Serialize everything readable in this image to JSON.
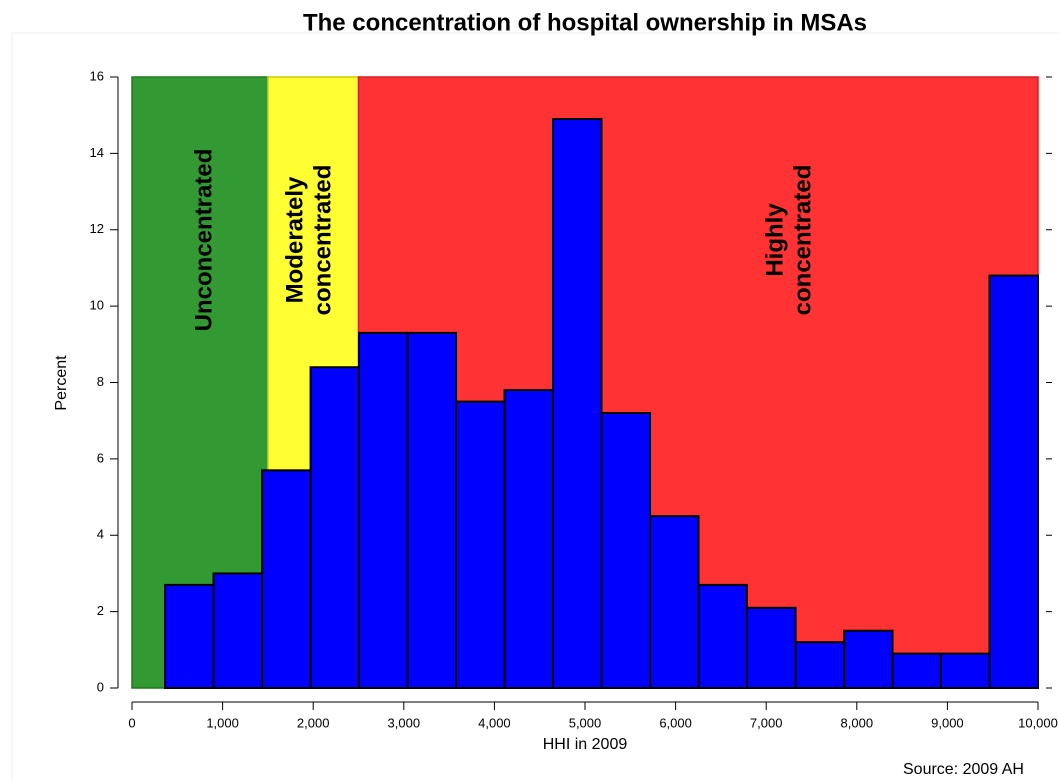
{
  "chart_data": {
    "type": "histogram",
    "title": "The concentration of hospital ownership in MSAs",
    "x_label": "HHI in 2009",
    "y_label": "Percent",
    "source": "Source: 2009 AH",
    "bins": [
      365,
      900,
      1435,
      1971,
      2506,
      3041,
      3576,
      4112,
      4647,
      5182,
      5718,
      6253,
      6788,
      7324,
      7859,
      8394,
      8929,
      9465,
      10000
    ],
    "values": [
      2.7,
      3.0,
      5.7,
      8.4,
      9.3,
      9.3,
      7.5,
      7.8,
      14.9,
      7.2,
      4.5,
      2.7,
      2.1,
      1.2,
      1.5,
      0.9,
      0.9,
      10.8
    ],
    "color": "#0000ff",
    "regions": [
      {
        "label": [
          "Unconcentrated"
        ],
        "from": 0,
        "to": 1500,
        "top": 16,
        "color": "#339933"
      },
      {
        "label": [
          "Moderately",
          "concentrated"
        ],
        "from": 1500,
        "to": 2500,
        "top": 16,
        "color": "#ffff33"
      },
      {
        "label": [
          "Highly",
          "concentrated"
        ],
        "from": 2500,
        "to": 10000,
        "top": 16,
        "color": "#ff3333"
      }
    ],
    "xlim": [
      0,
      10000
    ],
    "ylim": [
      0,
      16
    ],
    "xticks": [
      0,
      {
        "value": 1000,
        "label": "1,000"
      },
      {
        "value": 2000,
        "label": "2,000"
      },
      {
        "value": 3000,
        "label": "3,000"
      },
      {
        "value": 4000,
        "label": "4,000"
      },
      {
        "value": 5000,
        "label": "5,000"
      },
      {
        "value": 6000,
        "label": "6,000"
      },
      {
        "value": 7000,
        "label": "7,000"
      },
      {
        "value": 8000,
        "label": "8,000"
      },
      {
        "value": 9000,
        "label": "9,000"
      },
      {
        "value": 10000,
        "label": "10,000"
      }
    ],
    "yticks": [
      0,
      2,
      4,
      6,
      8,
      10,
      12,
      14,
      16
    ]
  }
}
